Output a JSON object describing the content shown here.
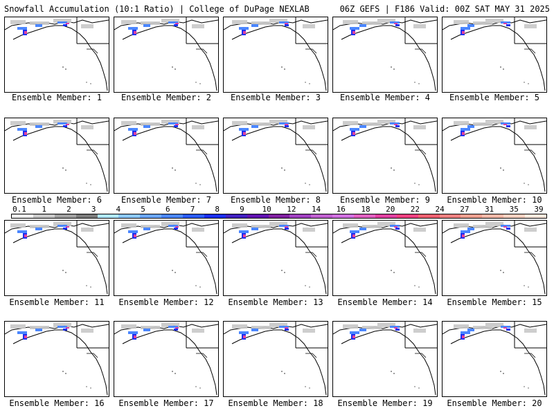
{
  "header": {
    "title": "Snowfall Accumulation (10:1 Ratio) | College of DuPage NEXLAB",
    "run": "06Z GEFS | F186 Valid: 00Z SAT MAY 31 2025"
  },
  "panels": [
    {
      "label": "Ensemble Member: 1"
    },
    {
      "label": "Ensemble Member: 2"
    },
    {
      "label": "Ensemble Member: 3"
    },
    {
      "label": "Ensemble Member: 4"
    },
    {
      "label": "Ensemble Member: 5"
    },
    {
      "label": "Ensemble Member: 6"
    },
    {
      "label": "Ensemble Member: 7"
    },
    {
      "label": "Ensemble Member: 8"
    },
    {
      "label": "Ensemble Member: 9"
    },
    {
      "label": "Ensemble Member: 10"
    },
    {
      "label": "Ensemble Member: 11"
    },
    {
      "label": "Ensemble Member: 12"
    },
    {
      "label": "Ensemble Member: 13"
    },
    {
      "label": "Ensemble Member: 14"
    },
    {
      "label": "Ensemble Member: 15"
    },
    {
      "label": "Ensemble Member: 16"
    },
    {
      "label": "Ensemble Member: 17"
    },
    {
      "label": "Ensemble Member: 18"
    },
    {
      "label": "Ensemble Member: 19"
    },
    {
      "label": "Ensemble Member: 20"
    }
  ],
  "colorbar": {
    "ticks": [
      "0.1",
      "1",
      "2",
      "3",
      "4",
      "5",
      "6",
      "7",
      "8",
      "9",
      "10",
      "12",
      "14",
      "16",
      "18",
      "20",
      "22",
      "24",
      "27",
      "31",
      "35",
      "39"
    ],
    "colors": [
      "#f0f0f0",
      "#c8c8c8",
      "#a0a0a0",
      "#7a7a7a",
      "#b0e8ff",
      "#8cc8ff",
      "#6aa6ff",
      "#4a86ff",
      "#2a5cff",
      "#1a2ef0",
      "#4020c0",
      "#6010b0",
      "#8020a0",
      "#a040c0",
      "#c060d0",
      "#d070e0",
      "#e060c0",
      "#e040a0",
      "#f04080",
      "#f06070",
      "#f08080",
      "#f0a090",
      "#f5b8a8",
      "#f8d0c0",
      "#fbe8dc"
    ]
  }
}
